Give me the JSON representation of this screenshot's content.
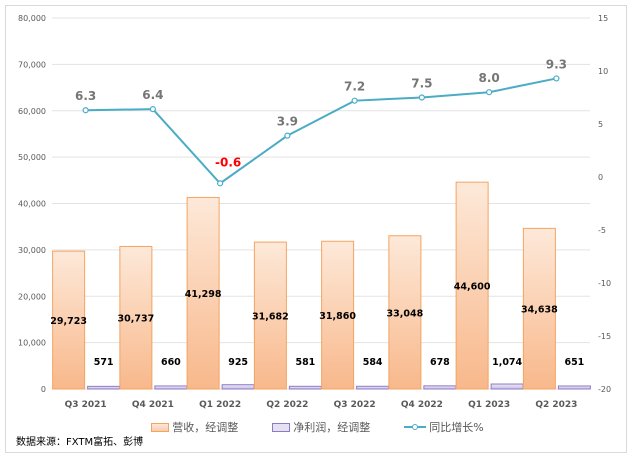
{
  "chart_data": {
    "type": "bar+line",
    "categories": [
      "Q3 2021",
      "Q4 2021",
      "Q1 2022",
      "Q2 2022",
      "Q3 2022",
      "Q4 2022",
      "Q1 2023",
      "Q2 2023"
    ],
    "series": [
      {
        "name": "营收，经调整",
        "type": "bar",
        "axis": "left",
        "color": "#f4b183",
        "values": [
          29723,
          30737,
          41298,
          31682,
          31860,
          33048,
          44600,
          34638
        ],
        "labels": [
          "29,723",
          "30,737",
          "41,298",
          "31,682",
          "31,860",
          "33,048",
          "44,600",
          "34,638"
        ]
      },
      {
        "name": "净利润，经调整",
        "type": "bar",
        "axis": "left",
        "color": "#b4a7d6",
        "values": [
          571,
          660,
          925,
          581,
          584,
          678,
          1074,
          651
        ],
        "labels": [
          "571",
          "660",
          "925",
          "581",
          "584",
          "678",
          "1,074",
          "651"
        ]
      },
      {
        "name": "同比增长%",
        "type": "line",
        "axis": "right",
        "color": "#4bacc6",
        "values": [
          6.3,
          6.4,
          -0.6,
          3.9,
          7.2,
          7.5,
          8.0,
          9.3
        ],
        "labels": [
          "6.3",
          "6.4",
          "-0.6",
          "3.9",
          "7.2",
          "7.5",
          "8.0",
          "9.3"
        ],
        "negative_label_color": "#ff0000"
      }
    ],
    "y_left": {
      "range": [
        0,
        80000
      ],
      "ticks": [
        "0",
        "10,000",
        "20,000",
        "30,000",
        "40,000",
        "50,000",
        "60,000",
        "70,000",
        "80,000"
      ]
    },
    "y_right": {
      "range": [
        -20,
        15
      ],
      "ticks": [
        "-20",
        "-15",
        "-10",
        "-5",
        "0",
        "5",
        "10",
        "15"
      ]
    },
    "grid": true,
    "legend": "bottom"
  },
  "source": "数据来源：FXTM富拓、彭博"
}
